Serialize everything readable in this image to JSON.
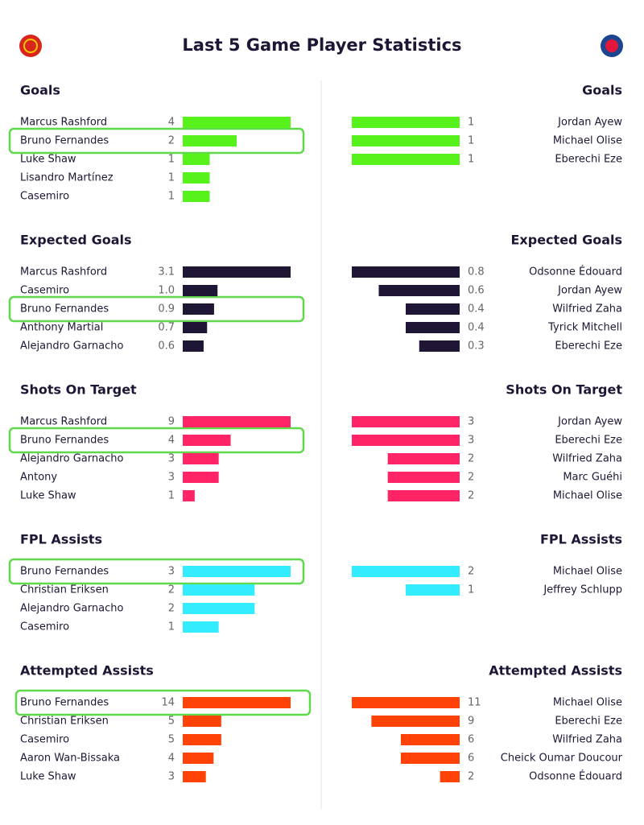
{
  "title": "Last 5 Game Player Statistics",
  "chart_data": [
    {
      "type": "bar",
      "title": "Goals",
      "color": "#57f21c",
      "categories": [
        "Marcus Rashford",
        "Bruno Fernandes",
        "Luke Shaw",
        "Lisandro Martínez",
        "Casemiro"
      ],
      "values": [
        4,
        2,
        1,
        1,
        1
      ]
    },
    {
      "type": "bar",
      "title": "Goals",
      "color": "#57f21c",
      "categories": [
        "Jordan Ayew",
        "Michael Olise",
        "Eberechi Eze"
      ],
      "values": [
        1,
        1,
        1
      ]
    },
    {
      "type": "bar",
      "title": "Expected Goals",
      "color": "#1f1635",
      "categories": [
        "Marcus Rashford",
        "Casemiro",
        "Bruno Fernandes",
        "Anthony Martial",
        "Alejandro Garnacho"
      ],
      "values": [
        3.1,
        1.0,
        0.9,
        0.7,
        0.6
      ],
      "value_labels": [
        "3.1",
        "1.0",
        "0.9",
        "0.7",
        "0.6"
      ]
    },
    {
      "type": "bar",
      "title": "Expected Goals",
      "color": "#1f1635",
      "categories": [
        "Odsonne Édouard",
        "Jordan Ayew",
        "Wilfried Zaha",
        "Tyrick Mitchell",
        "Eberechi Eze"
      ],
      "values": [
        0.8,
        0.6,
        0.4,
        0.4,
        0.3
      ]
    },
    {
      "type": "bar",
      "title": "Shots On Target",
      "color": "#ff2466",
      "categories": [
        "Marcus Rashford",
        "Bruno Fernandes",
        "Alejandro Garnacho",
        "Antony",
        "Luke Shaw"
      ],
      "values": [
        9,
        4,
        3,
        3,
        1
      ]
    },
    {
      "type": "bar",
      "title": "Shots On Target",
      "color": "#ff2466",
      "categories": [
        "Jordan Ayew",
        "Eberechi Eze",
        "Wilfried Zaha",
        "Marc Guéhi",
        "Michael Olise"
      ],
      "values": [
        3,
        3,
        2,
        2,
        2
      ]
    },
    {
      "type": "bar",
      "title": "FPL Assists",
      "color": "#33ecff",
      "categories": [
        "Bruno Fernandes",
        "Christian Eriksen",
        "Alejandro Garnacho",
        "Casemiro"
      ],
      "values": [
        3,
        2,
        2,
        1
      ]
    },
    {
      "type": "bar",
      "title": "FPL Assists",
      "color": "#33ecff",
      "categories": [
        "Michael Olise",
        "Jeffrey Schlupp"
      ],
      "values": [
        2,
        1
      ]
    },
    {
      "type": "bar",
      "title": "Attempted Assists",
      "color": "#ff4308",
      "categories": [
        "Bruno Fernandes",
        "Christian Eriksen",
        "Casemiro",
        "Aaron Wan-Bissaka",
        "Luke Shaw"
      ],
      "values": [
        14,
        5,
        5,
        4,
        3
      ]
    },
    {
      "type": "bar",
      "title": "Attempted Assists",
      "color": "#ff4308",
      "categories": [
        "Michael Olise",
        "Eberechi Eze",
        "Wilfried Zaha",
        "Cheick Oumar Doucour",
        "Odsonne Édouard"
      ],
      "values": [
        11,
        9,
        6,
        6,
        2
      ]
    }
  ]
}
